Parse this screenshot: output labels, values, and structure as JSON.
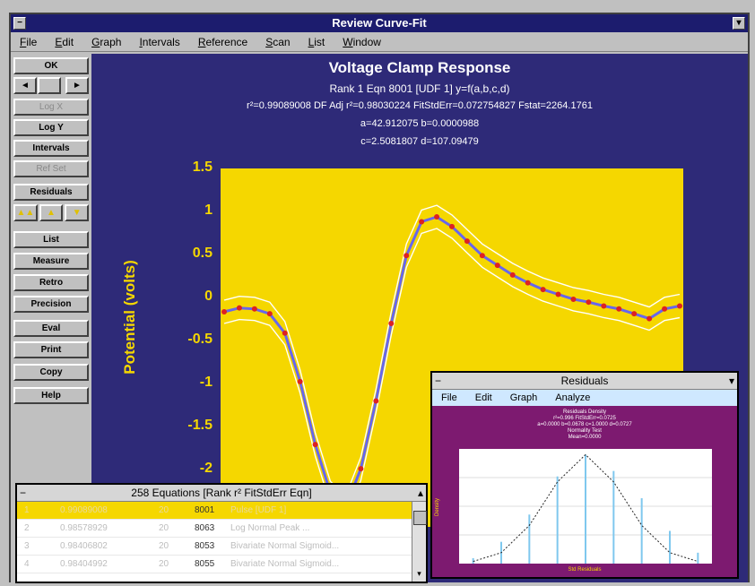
{
  "window": {
    "title": "Review Curve-Fit"
  },
  "menu": [
    "File",
    "Edit",
    "Graph",
    "Intervals",
    "Reference",
    "Scan",
    "List",
    "Window"
  ],
  "toolbar": {
    "ok": "OK",
    "nav_left": "◄",
    "nav_right": "►",
    "buttons": [
      "Log X",
      "Log Y",
      "Intervals",
      "Ref Set",
      "Residuals",
      "List",
      "Measure",
      "Retro",
      "Precision",
      "Eval",
      "Print",
      "Copy",
      "Help"
    ]
  },
  "plot": {
    "title": "Voltage Clamp Response",
    "line1": "Rank 1  Eqn 8001  [UDF 1] y=f(a,b,c,d)",
    "line2": "r²=0.99089008  DF Adj r²=0.98030224  FitStdErr=0.072754827  Fstat=2264.1761",
    "line3": "a=42.912075 b=0.0000988",
    "line4": "c=2.5081807 d=107.09479",
    "ylabel": "Potential (volts)",
    "yticks": [
      "1.5",
      "1",
      "0.5",
      "0",
      "-0.5",
      "-1",
      "-1.5",
      "-2"
    ]
  },
  "chart_data": {
    "type": "scatter",
    "title": "Voltage Clamp Response",
    "xlabel": "",
    "ylabel": "Potential (volts)",
    "ylim": [
      -2.2,
      1.5
    ],
    "grid": false,
    "x": [
      0,
      5,
      10,
      15,
      20,
      25,
      30,
      35,
      40,
      45,
      50,
      55,
      60,
      65,
      70,
      75,
      80,
      85,
      90,
      95,
      100,
      105,
      110,
      115,
      120,
      125,
      130,
      135,
      140,
      145,
      150
    ],
    "y": [
      0.02,
      0.06,
      0.05,
      0.0,
      -0.2,
      -0.7,
      -1.35,
      -1.85,
      -2.0,
      -1.6,
      -0.9,
      -0.1,
      0.6,
      0.95,
      1.0,
      0.9,
      0.75,
      0.6,
      0.5,
      0.4,
      0.32,
      0.25,
      0.2,
      0.15,
      0.12,
      0.08,
      0.05,
      0.0,
      -0.05,
      0.05,
      0.08
    ],
    "colors": {
      "background": "#f5d700",
      "fit": "#6666ee",
      "points": "#dd2222",
      "band": "#ffffff"
    }
  },
  "equations": {
    "title": "258 Equations  [Rank r² FitStdErr Eqn]",
    "rows": [
      {
        "rank": "1",
        "r2": "0.99089008",
        "df": "20",
        "eqn": "8001",
        "desc": "Pulse [UDF 1]"
      },
      {
        "rank": "2",
        "r2": "0.98578929",
        "df": "20",
        "eqn": "8063",
        "desc": "Log Normal Peak ..."
      },
      {
        "rank": "3",
        "r2": "0.98406802",
        "df": "20",
        "eqn": "8053",
        "desc": "Bivariate Normal Sigmoid..."
      },
      {
        "rank": "4",
        "r2": "0.98404992",
        "df": "20",
        "eqn": "8055",
        "desc": "Bivariate Normal Sigmoid..."
      }
    ]
  },
  "residuals": {
    "title": "Residuals",
    "menu": [
      "File",
      "Edit",
      "Graph",
      "Analyze"
    ],
    "header": [
      "Residuals Density",
      "r²=0.996  FitStdErr=0.0725",
      "a=0.0000 b=0.0678 c=1.0000 d=0.0727",
      "Normality Test",
      "Mean=0.0000"
    ],
    "ylabel": "Density",
    "xlabel": "Std Residuals",
    "chart_data": {
      "type": "bar",
      "values": [
        0.05,
        0.2,
        0.45,
        0.8,
        1.0,
        0.85,
        0.6,
        0.3,
        0.1
      ],
      "curve": [
        0.02,
        0.1,
        0.35,
        0.75,
        1.0,
        0.75,
        0.35,
        0.1,
        0.02
      ]
    }
  }
}
